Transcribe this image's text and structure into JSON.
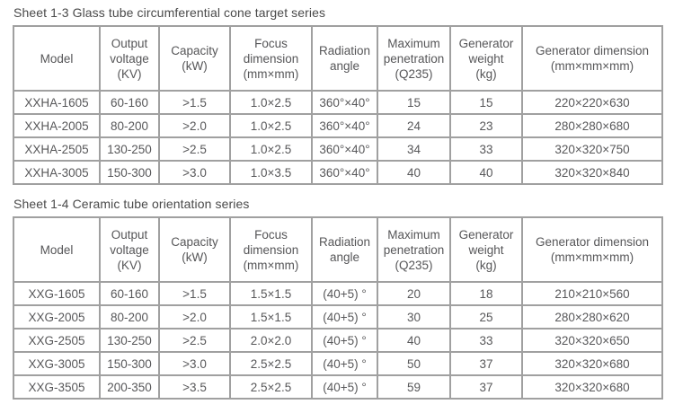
{
  "page": {
    "background": "#ffffff",
    "border_color": "#a0a0a0",
    "text_color": "#58585a",
    "title_color": "#4a4a4a"
  },
  "tables": [
    {
      "title": "Sheet 1-3 Glass tube circumferential cone target series",
      "headers": [
        {
          "lines": [
            "Model"
          ]
        },
        {
          "lines": [
            "Output",
            "voltage",
            "(KV)"
          ]
        },
        {
          "lines": [
            "Capacity",
            "(kW)"
          ]
        },
        {
          "lines": [
            "Focus",
            "dimension",
            "(mm×mm)"
          ]
        },
        {
          "lines": [
            "Radiation",
            "angle"
          ]
        },
        {
          "lines": [
            "Maximum",
            "penetration",
            "(Q235)"
          ]
        },
        {
          "lines": [
            "Generator",
            "weight",
            "(kg)"
          ]
        },
        {
          "lines": [
            "Generator dimension",
            "(mm×mm×mm)"
          ]
        }
      ],
      "rows": [
        [
          "XXHA-1605",
          "60-160",
          ">1.5",
          "1.0×2.5",
          "360°×40°",
          "15",
          "15",
          "220×220×630"
        ],
        [
          "XXHA-2005",
          "80-200",
          ">2.0",
          "1.0×2.5",
          "360°×40°",
          "24",
          "23",
          "280×280×680"
        ],
        [
          "XXHA-2505",
          "130-250",
          ">2.5",
          "1.0×2.5",
          "360°×40°",
          "34",
          "33",
          "320×320×750"
        ],
        [
          "XXHA-3005",
          "150-300",
          ">3.0",
          "1.0×3.5",
          "360°×40°",
          "40",
          "40",
          "320×320×840"
        ]
      ]
    },
    {
      "title": "Sheet 1-4 Ceramic tube orientation series",
      "headers": [
        {
          "lines": [
            "Model"
          ]
        },
        {
          "lines": [
            "Output",
            "voltage",
            "(KV)"
          ]
        },
        {
          "lines": [
            "Capacity",
            "(kW)"
          ]
        },
        {
          "lines": [
            "Focus",
            "dimension",
            "(mm×mm)"
          ]
        },
        {
          "lines": [
            "Radiation",
            "angle"
          ]
        },
        {
          "lines": [
            "Maximum",
            "penetration",
            "(Q235)"
          ]
        },
        {
          "lines": [
            "Generator",
            "weight",
            "(kg)"
          ]
        },
        {
          "lines": [
            "Generator dimension",
            "(mm×mm×mm)"
          ]
        }
      ],
      "rows": [
        [
          "XXG-1605",
          "60-160",
          ">1.5",
          "1.5×1.5",
          "(40+5) °",
          "20",
          "18",
          "210×210×560"
        ],
        [
          "XXG-2005",
          "80-200",
          ">2.0",
          "1.5×1.5",
          "(40+5) °",
          "30",
          "25",
          "280×280×620"
        ],
        [
          "XXG-2505",
          "130-250",
          ">2.5",
          "2.0×2.0",
          "(40+5) °",
          "40",
          "33",
          "320×320×650"
        ],
        [
          "XXG-3005",
          "150-300",
          ">3.0",
          "2.5×2.5",
          "(40+5) °",
          "50",
          "37",
          "320×320×680"
        ],
        [
          "XXG-3505",
          "200-350",
          ">3.5",
          "2.5×2.5",
          "(40+5) °",
          "59",
          "37",
          "320×320×680"
        ]
      ]
    }
  ]
}
